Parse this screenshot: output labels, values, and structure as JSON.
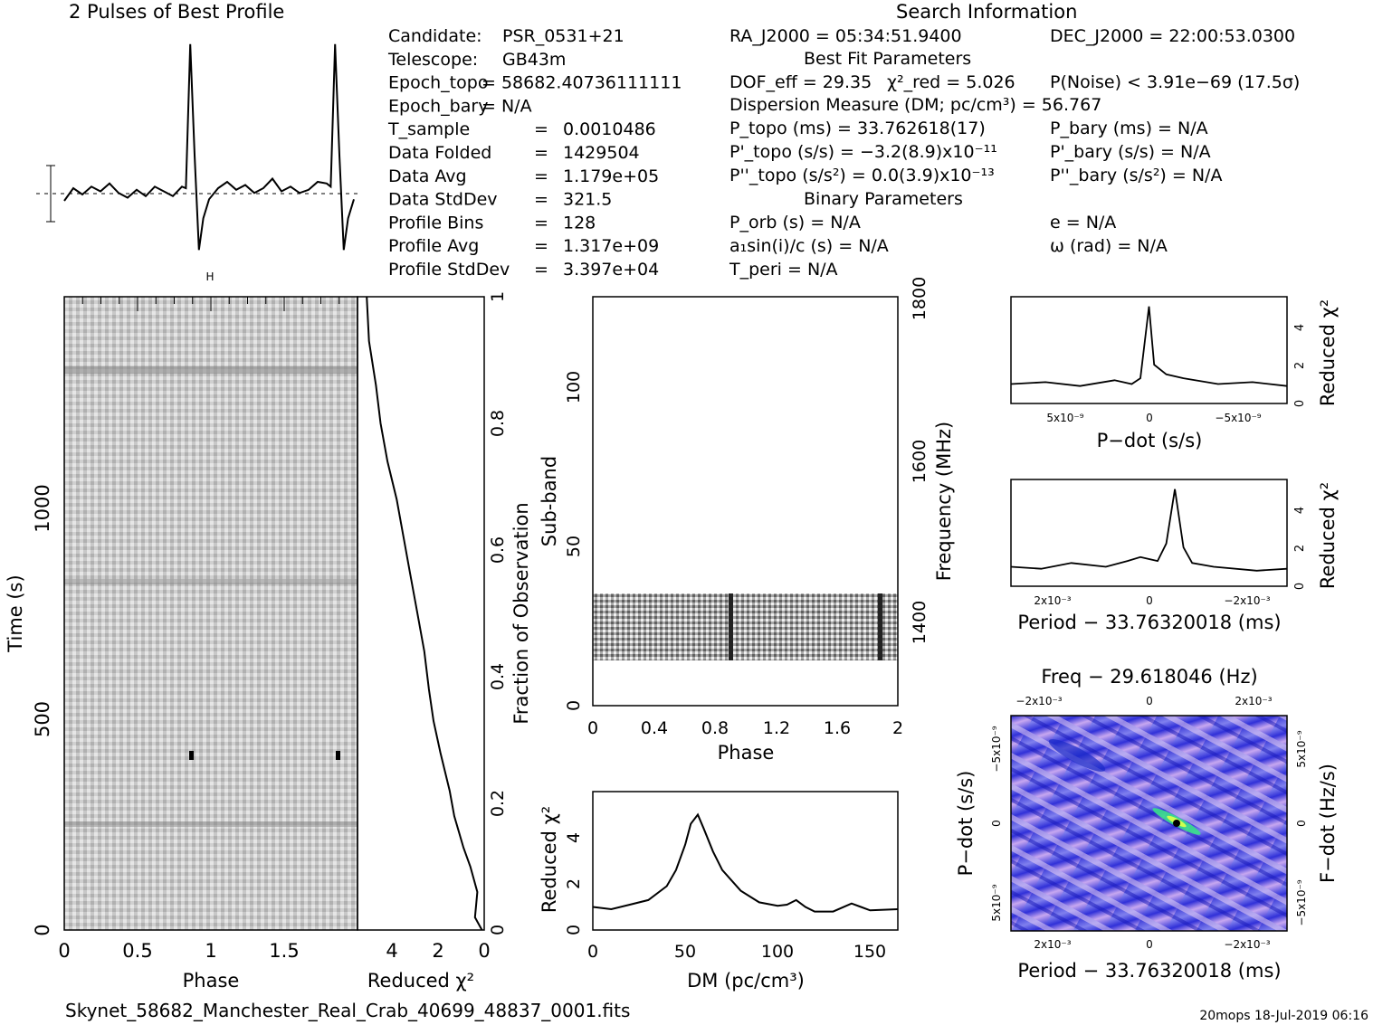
{
  "header": {
    "profile_title": "2 Pulses of Best Profile",
    "search_title": "Search Information",
    "best_fit_title": "Best Fit Parameters",
    "binary_title": "Binary Parameters",
    "filename": "Skynet_58682_Manchester_Real_Crab_40699_48837_0001.fits",
    "footer_stamp": "20mops  18-Jul-2019 06:16"
  },
  "info_left": [
    {
      "label": "Candidate:",
      "value": "PSR_0531+21"
    },
    {
      "label": "Telescope:",
      "value": "GB43m"
    },
    {
      "label": "Epoch_topo",
      "value": "= 58682.40736111111"
    },
    {
      "label": "Epoch_bary",
      "value": "= N/A"
    },
    {
      "label": "T_sample",
      "value": "0.0010486"
    },
    {
      "label": "Data Folded",
      "value": "1429504"
    },
    {
      "label": "Data Avg",
      "value": "1.179e+05"
    },
    {
      "label": "Data StdDev",
      "value": "321.5"
    },
    {
      "label": "Profile Bins",
      "value": "128"
    },
    {
      "label": "Profile Avg",
      "value": "1.317e+09"
    },
    {
      "label": "Profile StdDev",
      "value": "3.397e+04"
    }
  ],
  "info_mid": {
    "ra": "RA_J2000 = 05:34:51.9400",
    "dof": "DOF_eff = 29.35",
    "chi2": "χ²_red = 5.026",
    "pnoise": "P(Noise) < 3.91e−69   (17.5σ)",
    "dm_line": "Dispersion Measure (DM; pc/cm³) = 56.767",
    "ptopo": "P_topo (ms) =  33.762618(17)",
    "pdtopo": "P'_topo (s/s) = −3.2(8.9)x10⁻¹¹",
    "pddtopo": "P''_topo (s/s²) = 0.0(3.9)x10⁻¹³",
    "porb": "P_orb (s) = N/A",
    "asini": "a₁sin(i)/c (s) = N/A",
    "tperi": "T_peri = N/A"
  },
  "info_right": {
    "dec": "DEC_J2000 = 22:00:53.0300",
    "pbary": "P_bary (ms) = N/A",
    "pdbary": "P'_bary (s/s) = N/A",
    "pddbary": "P''_bary (s/s²) = N/A",
    "ecc": "e = N/A",
    "omega": "ω (rad) = N/A"
  },
  "colors": {
    "ink": "#000000",
    "plane_low": "#1a1acc",
    "plane_mid": "#8f8ff0",
    "plane_high": "#f0d8f0",
    "peak": "#39e08a"
  },
  "chart_data": [
    {
      "id": "profile",
      "type": "line",
      "title": "2 Pulses of Best Profile",
      "x": [
        0,
        0.0625,
        0.125,
        0.1875,
        0.25,
        0.3125,
        0.375,
        0.4375,
        0.5,
        0.5625,
        0.625,
        0.6875,
        0.75,
        0.8125,
        0.84,
        0.87,
        0.9,
        0.93,
        0.96,
        1.0,
        1.0625,
        1.125,
        1.1875,
        1.25,
        1.3125,
        1.375,
        1.4375,
        1.5,
        1.5625,
        1.625,
        1.6875,
        1.75,
        1.8125,
        1.84,
        1.87,
        1.9,
        1.93,
        1.96,
        2.0
      ],
      "y": [
        0.1,
        0.9,
        0.5,
        1.0,
        0.7,
        1.2,
        0.6,
        0.3,
        0.8,
        0.4,
        1.0,
        0.7,
        0.4,
        1.0,
        0.9,
        10.0,
        3.0,
        -3.0,
        -1.0,
        0.2,
        0.9,
        1.3,
        0.8,
        1.1,
        0.6,
        0.9,
        1.5,
        0.7,
        1.0,
        0.6,
        0.8,
        1.3,
        1.2,
        1.0,
        10.0,
        3.0,
        -3.0,
        -1.0,
        0.2
      ],
      "ylim": [
        -3.5,
        10.5
      ],
      "xlim": [
        0,
        2
      ]
    },
    {
      "id": "time_phase",
      "type": "heatmap",
      "xlabel": "Phase",
      "ylabel": "Time (s)",
      "xticks": [
        "0",
        "0.5",
        "1",
        "1.5"
      ],
      "yticks": [
        "0",
        "500",
        "1000"
      ],
      "xlim": [
        0,
        2
      ],
      "ylim": [
        0,
        1500
      ]
    },
    {
      "id": "chi2_vs_time",
      "type": "line",
      "xlabel": "Reduced χ²",
      "ylabel": "Fraction of Observation",
      "xticks": [
        "4",
        "2",
        "0"
      ],
      "yticks": [
        "0",
        "0.2",
        "0.4",
        "0.6",
        "0.8",
        "1"
      ],
      "xlim": [
        5.5,
        0
      ],
      "ylim": [
        0,
        1
      ],
      "x": [
        0.1,
        0.4,
        0.3,
        0.6,
        0.9,
        1.3,
        1.5,
        1.9,
        2.2,
        2.4,
        2.6,
        2.9,
        3.2,
        3.5,
        3.8,
        4.2,
        4.5,
        4.7,
        5.0,
        5.1
      ],
      "y": [
        0.0,
        0.02,
        0.06,
        0.1,
        0.13,
        0.18,
        0.22,
        0.28,
        0.33,
        0.38,
        0.44,
        0.5,
        0.56,
        0.62,
        0.68,
        0.74,
        0.8,
        0.86,
        0.93,
        1.0
      ]
    },
    {
      "id": "subband_phase",
      "type": "heatmap",
      "xlabel": "Phase",
      "ylabel": "Sub-band",
      "y2label": "Frequency (MHz)",
      "xticks": [
        "0",
        "0.4",
        "0.8",
        "1.2",
        "1.6",
        "2"
      ],
      "yticks": [
        "0",
        "50",
        "100"
      ],
      "y2ticks": [
        "1400",
        "1600",
        "1800"
      ],
      "xlim": [
        0,
        2
      ],
      "ylim": [
        0,
        128
      ],
      "filled_subbands": [
        14,
        35
      ]
    },
    {
      "id": "dm_curve",
      "type": "line",
      "xlabel": "DM (pc/cm³)",
      "ylabel": "Reduced χ²",
      "xticks": [
        "0",
        "50",
        "100",
        "150"
      ],
      "yticks": [
        "0",
        "2",
        "4"
      ],
      "xlim": [
        0,
        165
      ],
      "ylim": [
        0,
        6
      ],
      "x": [
        0,
        10,
        20,
        30,
        40,
        45,
        50,
        53,
        56.8,
        60,
        65,
        70,
        80,
        90,
        100,
        105,
        110,
        115,
        120,
        130,
        140,
        145,
        150,
        165
      ],
      "y": [
        1.0,
        0.9,
        1.1,
        1.3,
        1.9,
        2.6,
        3.7,
        4.6,
        5.0,
        4.4,
        3.4,
        2.6,
        1.7,
        1.2,
        1.05,
        1.1,
        1.3,
        1.0,
        0.8,
        0.8,
        1.15,
        1.0,
        0.85,
        0.9
      ]
    },
    {
      "id": "pdot_chi2",
      "type": "line",
      "xlabel": "P−dot (s/s)",
      "ylabel": "Reduced χ²",
      "xticks": [
        "5x10⁻⁹",
        "0",
        "−5x10⁻⁹"
      ],
      "yticks": [
        "0",
        "2",
        "4"
      ],
      "xlim": [
        8e-09,
        -8e-09
      ],
      "ylim": [
        0,
        5.5
      ],
      "x": [
        8e-09,
        6e-09,
        4e-09,
        2e-09,
        1e-09,
        5e-10,
        0,
        -3e-10,
        -1e-09,
        -2e-09,
        -4e-09,
        -6e-09,
        -8e-09
      ],
      "y": [
        1.0,
        1.1,
        0.9,
        1.2,
        1.0,
        1.3,
        5.0,
        2.0,
        1.5,
        1.3,
        1.0,
        1.1,
        0.9
      ]
    },
    {
      "id": "period_chi2",
      "type": "line",
      "xlabel": "Period − 33.76320018 (ms)",
      "ylabel": "Reduced χ²",
      "xticks": [
        "2x10⁻³",
        "0",
        "−2x10⁻³"
      ],
      "yticks": [
        "0",
        "2",
        "4"
      ],
      "xlim": [
        0.0032,
        -0.0032
      ],
      "ylim": [
        0,
        5.5
      ],
      "x": [
        0.0032,
        0.0025,
        0.0018,
        0.001,
        0.0005,
        0.0002,
        -0.0002,
        -0.0004,
        -0.0006,
        -0.0008,
        -0.001,
        -0.0015,
        -0.0025,
        -0.0032
      ],
      "y": [
        1.0,
        0.9,
        1.2,
        1.0,
        1.3,
        1.5,
        1.3,
        2.2,
        5.0,
        2.0,
        1.2,
        1.0,
        0.8,
        0.9
      ]
    },
    {
      "id": "p_pdot_plane",
      "type": "heatmap",
      "title": "Freq − 29.618046 (Hz)",
      "xlabel": "Period − 33.76320018 (ms)",
      "ylabel": "P−dot (s/s)",
      "y2label": "F−dot (Hz/s)",
      "xticks": [
        "2x10⁻³",
        "0",
        "−2x10⁻³"
      ],
      "x2ticks": [
        "−2x10⁻³",
        "0",
        "2x10⁻³"
      ],
      "yticks": [
        "5x10⁻⁹",
        "0",
        "−5x10⁻⁹"
      ],
      "y2ticks": [
        "−5x10⁻⁹",
        "0",
        "5x10⁻⁹"
      ],
      "peak": {
        "period_offset_ms": -0.0006,
        "pdot": 0
      }
    }
  ]
}
